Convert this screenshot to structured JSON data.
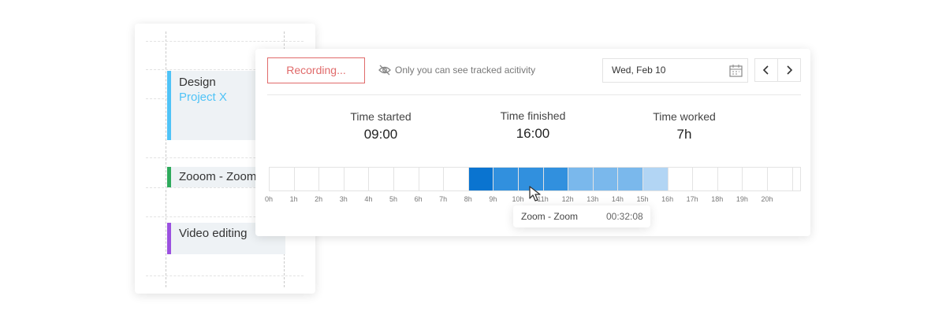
{
  "sidebar": {
    "tasks": [
      {
        "title": "Design",
        "subtitle": "Project X",
        "color": "#4fc3f7"
      },
      {
        "title": "Zooom - Zoom",
        "color": "#2eaa5c"
      },
      {
        "title": "Video editing",
        "color": "#9b51e0"
      }
    ]
  },
  "toolbar": {
    "recording": "Recording...",
    "privacy_note": "Only you can see tracked acitivity",
    "date": "Wed, Feb 10"
  },
  "stats": [
    {
      "label": "Time started",
      "value": "09:00"
    },
    {
      "label": "Time finished",
      "value": "16:00"
    },
    {
      "label": "Time worked",
      "value": "7h"
    }
  ],
  "timeline": {
    "hours": [
      "0h",
      "1h",
      "2h",
      "3h",
      "4h",
      "5h",
      "6h",
      "7h",
      "8h",
      "9h",
      "10h",
      "11h",
      "12h",
      "13h",
      "14h",
      "15h",
      "16h",
      "17h",
      "18h",
      "19h",
      "20h"
    ],
    "cell_colors": [
      "#ffffff",
      "#ffffff",
      "#ffffff",
      "#ffffff",
      "#ffffff",
      "#ffffff",
      "#ffffff",
      "#ffffff",
      "#0a74d0",
      "#3190de",
      "#3190de",
      "#3190de",
      "#7ab8ec",
      "#7ab8ec",
      "#7ab8ec",
      "#b2d5f4",
      "#ffffff",
      "#ffffff",
      "#ffffff",
      "#ffffff",
      "#ffffff"
    ]
  },
  "tooltip": {
    "name": "Zoom - Zoom",
    "duration": "00:32:08"
  }
}
